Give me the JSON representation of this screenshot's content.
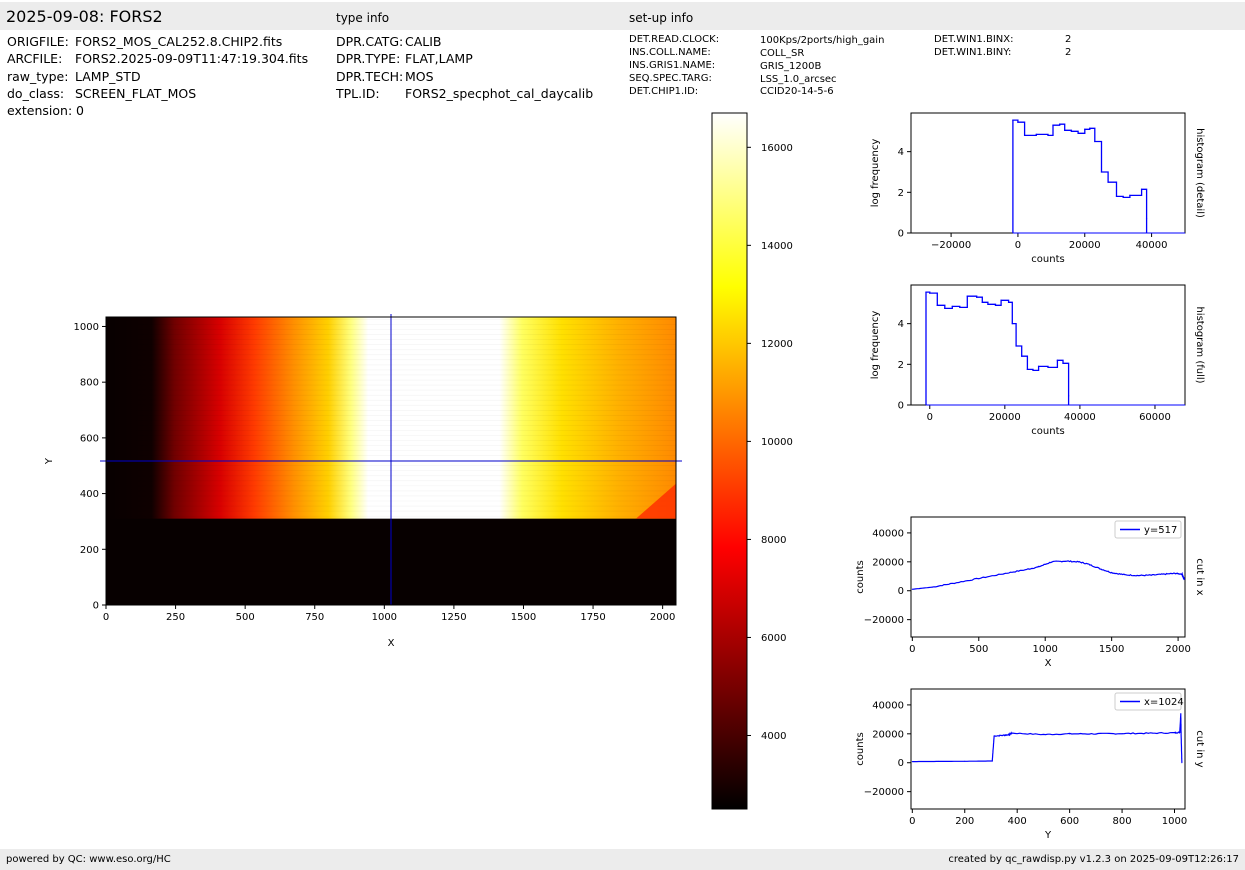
{
  "header": {
    "title": "2025-09-08: FORS2",
    "type_info_heading": "type info",
    "setup_info_heading": "set-up info"
  },
  "file_info": [
    {
      "key": "ORIGFILE:",
      "value": "FORS2_MOS_CAL252.8.CHIP2.fits"
    },
    {
      "key": "ARCFILE:",
      "value": "FORS2.2025-09-09T11:47:19.304.fits"
    },
    {
      "key": "raw_type:",
      "value": "LAMP_STD"
    },
    {
      "key": "do_class:",
      "value": "SCREEN_FLAT_MOS"
    },
    {
      "key": "extension:",
      "value": "0"
    }
  ],
  "type_info": [
    {
      "key": "DPR.CATG:",
      "value": "CALIB"
    },
    {
      "key": "DPR.TYPE:",
      "value": "FLAT,LAMP"
    },
    {
      "key": "DPR.TECH:",
      "value": "MOS"
    },
    {
      "key": "TPL.ID:",
      "value": "FORS2_specphot_cal_daycalib"
    }
  ],
  "setup_info": [
    {
      "key": "DET.READ.CLOCK:",
      "value": "100Kps/2ports/high_gain"
    },
    {
      "key": "INS.COLL.NAME:",
      "value": "COLL_SR"
    },
    {
      "key": "INS.GRIS1.NAME:",
      "value": "GRIS_1200B"
    },
    {
      "key": "SEQ.SPEC.TARG:",
      "value": "LSS_1.0_arcsec"
    },
    {
      "key": "DET.CHIP1.ID:",
      "value": "CCID20-14-5-6"
    }
  ],
  "setup_info_2": [
    {
      "key": "DET.WIN1.BINX:",
      "value": "2"
    },
    {
      "key": "DET.WIN1.BINY:",
      "value": "2"
    }
  ],
  "footer": {
    "left": "powered by QC: www.eso.org/HC",
    "right": "created by qc_rawdisp.py v1.2.3 on 2025-09-09T12:26:17"
  },
  "colors": {
    "band": "#ececec",
    "trace": "#0000ff",
    "crosshair": "#0000cc"
  },
  "chart_data": [
    {
      "type": "heatmap",
      "name": "image",
      "xlabel": "X",
      "ylabel": "Y",
      "xlim": [
        0,
        2048
      ],
      "ylim": [
        0,
        1034
      ],
      "xticks": [
        0,
        250,
        500,
        750,
        1000,
        1250,
        1500,
        1750,
        2000
      ],
      "yticks": [
        0,
        200,
        400,
        600,
        800,
        1000
      ],
      "illuminated_rows": [
        310,
        1034
      ],
      "crosshair": {
        "x": 1024,
        "y": 517
      },
      "colormap": "hot",
      "clim": [
        2500,
        16700
      ]
    },
    {
      "type": "heatmap",
      "name": "colorbar",
      "clim": [
        2500,
        16700
      ],
      "ticks": [
        4000,
        6000,
        8000,
        10000,
        12000,
        14000,
        16000
      ]
    },
    {
      "type": "line",
      "name": "histogram-detail",
      "title": "histogram (detail)",
      "xlabel": "counts",
      "ylabel": "log frequency",
      "xlim": [
        -32000,
        50000
      ],
      "ylim": [
        0,
        5.9
      ],
      "xticks": [
        -20000,
        0,
        20000,
        40000
      ],
      "yticks": [
        0,
        2,
        4
      ],
      "x": [
        -1500,
        0,
        2000,
        5500,
        9000,
        10500,
        12500,
        14000,
        16000,
        18000,
        20000,
        21500,
        23000,
        25000,
        27000,
        29500,
        31500,
        33500,
        37000,
        38500
      ],
      "y": [
        5.55,
        5.45,
        4.8,
        4.85,
        4.8,
        5.3,
        5.35,
        5.05,
        5.0,
        4.9,
        5.1,
        5.15,
        4.5,
        3.0,
        2.5,
        1.8,
        1.75,
        1.85,
        2.15,
        0.7
      ]
    },
    {
      "type": "line",
      "name": "histogram-full",
      "title": "histogram (full)",
      "xlabel": "counts",
      "ylabel": "log frequency",
      "xlim": [
        -5000,
        68000
      ],
      "ylim": [
        0,
        5.9
      ],
      "xticks": [
        0,
        20000,
        40000,
        60000
      ],
      "yticks": [
        0,
        2,
        4
      ],
      "x": [
        -1000,
        0,
        2000,
        4000,
        6000,
        8000,
        10000,
        12500,
        14000,
        15500,
        17500,
        19000,
        21000,
        22000,
        23000,
        24500,
        26000,
        27500,
        29000,
        31500,
        34000,
        35500,
        37000
      ],
      "y": [
        5.55,
        5.5,
        4.9,
        4.75,
        4.85,
        4.8,
        5.35,
        5.3,
        5.05,
        4.95,
        4.9,
        5.15,
        5.05,
        4.0,
        2.9,
        2.4,
        1.75,
        1.7,
        1.9,
        1.85,
        2.2,
        2.05,
        0.45
      ]
    },
    {
      "type": "line",
      "name": "cut-in-x",
      "title": "cut in x",
      "xlabel": "X",
      "ylabel": "counts",
      "xlim": [
        -10,
        2052
      ],
      "ylim": [
        -32000,
        51000
      ],
      "xticks": [
        0,
        500,
        1000,
        1500,
        2000
      ],
      "yticks": [
        -20000,
        0,
        20000,
        40000
      ],
      "series": [
        {
          "name": "y=517",
          "x": [
            0,
            150,
            300,
            500,
            700,
            850,
            950,
            1050,
            1150,
            1250,
            1320,
            1420,
            1500,
            1600,
            1700,
            1800,
            1900,
            1980,
            2030,
            2040,
            2048
          ],
          "y": [
            1000,
            2500,
            5000,
            8500,
            12000,
            14500,
            16500,
            20000,
            20500,
            20000,
            18500,
            15000,
            12500,
            11000,
            10500,
            10800,
            11500,
            12000,
            11500,
            9000,
            8000
          ]
        }
      ]
    },
    {
      "type": "line",
      "name": "cut-in-y",
      "title": "cut in y",
      "xlabel": "Y",
      "ylabel": "counts",
      "xlim": [
        -5,
        1040
      ],
      "ylim": [
        -32000,
        51000
      ],
      "xticks": [
        0,
        200,
        400,
        600,
        800,
        1000
      ],
      "yticks": [
        -20000,
        0,
        20000,
        40000
      ],
      "series": [
        {
          "name": "x=1024",
          "x": [
            0,
            100,
            200,
            305,
            312,
            350,
            370,
            380,
            500,
            600,
            700,
            800,
            900,
            1000,
            1020,
            1024,
            1025,
            1028
          ],
          "y": [
            800,
            900,
            1000,
            1200,
            18500,
            19000,
            19500,
            20500,
            19500,
            20000,
            20000,
            20200,
            20400,
            20700,
            21000,
            34000,
            21000,
            0
          ]
        }
      ]
    }
  ]
}
